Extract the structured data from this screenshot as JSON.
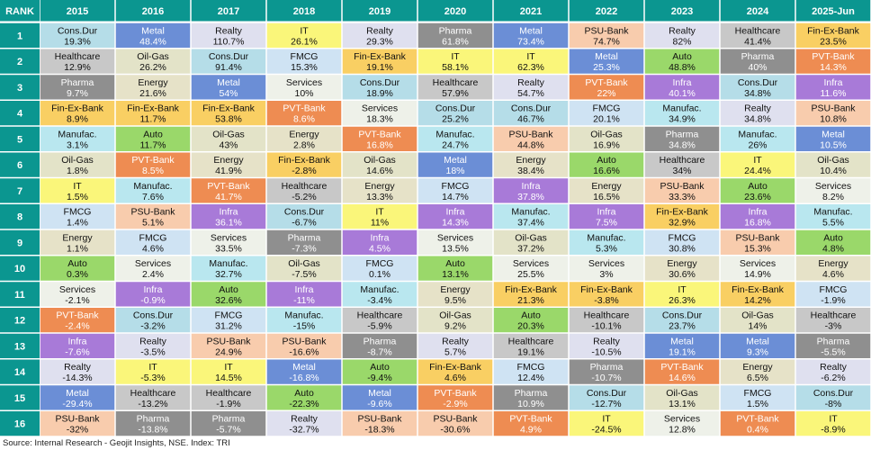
{
  "chart_data": {
    "type": "table",
    "header_label": "RANK",
    "years": [
      "2015",
      "2016",
      "2017",
      "2018",
      "2019",
      "2020",
      "2021",
      "2022",
      "2023",
      "2024",
      "2025-Jun"
    ],
    "ranks": [
      "1",
      "2",
      "3",
      "4",
      "5",
      "6",
      "7",
      "8",
      "9",
      "10",
      "11",
      "12",
      "13",
      "14",
      "15",
      "16"
    ],
    "sector_colors": {
      "Cons.Dur": "#b5dde8",
      "Metal": "#6b8ed6",
      "Realty": "#dfe0ef",
      "IT": "#faf67a",
      "Pharma": "#8f8f8f",
      "PSU-Bank": "#f8ccad",
      "Healthcare": "#c8c8c8",
      "Fin-Ex-Bank": "#f9cf63",
      "Oil-Gas": "#e3e3c8",
      "FMCG": "#cfe3f3",
      "Auto": "#9ad86a",
      "PVT-Bank": "#ee8c52",
      "Energy": "#e6e2c8",
      "Services": "#eef1e9",
      "Infra": "#a87ad8",
      "Manufac.": "#b9e7ef"
    },
    "white_text_sectors": [
      "Metal",
      "Pharma",
      "PVT-Bank",
      "Infra"
    ],
    "columns": [
      [
        [
          "Cons.Dur",
          "19.3%"
        ],
        [
          "Healthcare",
          "12.9%"
        ],
        [
          "Pharma",
          "9.7%"
        ],
        [
          "Fin-Ex-Bank",
          "8.9%"
        ],
        [
          "Manufac.",
          "3.1%"
        ],
        [
          "Oil-Gas",
          "1.8%"
        ],
        [
          "IT",
          "1.5%"
        ],
        [
          "FMCG",
          "1.4%"
        ],
        [
          "Energy",
          "1.1%"
        ],
        [
          "Auto",
          "0.3%"
        ],
        [
          "Services",
          "-2.1%"
        ],
        [
          "PVT-Bank",
          "-2.4%"
        ],
        [
          "Infra",
          "-7.6%"
        ],
        [
          "Realty",
          "-14.3%"
        ],
        [
          "Metal",
          "-29.4%"
        ],
        [
          "PSU-Bank",
          "-32%"
        ]
      ],
      [
        [
          "Metal",
          "48.4%"
        ],
        [
          "Oil-Gas",
          "26.2%"
        ],
        [
          "Energy",
          "21.6%"
        ],
        [
          "Fin-Ex-Bank",
          "11.7%"
        ],
        [
          "Auto",
          "11.7%"
        ],
        [
          "PVT-Bank",
          "8.5%"
        ],
        [
          "Manufac.",
          "7.6%"
        ],
        [
          "PSU-Bank",
          "5.1%"
        ],
        [
          "FMCG",
          "4.6%"
        ],
        [
          "Services",
          "2.4%"
        ],
        [
          "Infra",
          "-0.9%"
        ],
        [
          "Cons.Dur",
          "-3.2%"
        ],
        [
          "Realty",
          "-3.5%"
        ],
        [
          "IT",
          "-5.3%"
        ],
        [
          "Healthcare",
          "-13.2%"
        ],
        [
          "Pharma",
          "-13.8%"
        ]
      ],
      [
        [
          "Realty",
          "110.7%"
        ],
        [
          "Cons.Dur",
          "91.4%"
        ],
        [
          "Metal",
          "54%"
        ],
        [
          "Fin-Ex-Bank",
          "53.8%"
        ],
        [
          "Oil-Gas",
          "43%"
        ],
        [
          "Energy",
          "41.9%"
        ],
        [
          "PVT-Bank",
          "41.7%"
        ],
        [
          "Infra",
          "36.1%"
        ],
        [
          "Services",
          "33.5%"
        ],
        [
          "Manufac.",
          "32.7%"
        ],
        [
          "Auto",
          "32.6%"
        ],
        [
          "FMCG",
          "31.2%"
        ],
        [
          "PSU-Bank",
          "24.9%"
        ],
        [
          "IT",
          "14.5%"
        ],
        [
          "Healthcare",
          "-1.9%"
        ],
        [
          "Pharma",
          "-5.7%"
        ]
      ],
      [
        [
          "IT",
          "26.1%"
        ],
        [
          "FMCG",
          "15.3%"
        ],
        [
          "Services",
          "10%"
        ],
        [
          "PVT-Bank",
          "8.6%"
        ],
        [
          "Energy",
          "2.8%"
        ],
        [
          "Fin-Ex-Bank",
          "-2.8%"
        ],
        [
          "Healthcare",
          "-5.2%"
        ],
        [
          "Cons.Dur",
          "-6.7%"
        ],
        [
          "Pharma",
          "-7.3%"
        ],
        [
          "Oil-Gas",
          "-7.5%"
        ],
        [
          "Infra",
          "-11%"
        ],
        [
          "Manufac.",
          "-15%"
        ],
        [
          "PSU-Bank",
          "-16.6%"
        ],
        [
          "Metal",
          "-16.8%"
        ],
        [
          "Auto",
          "-22.3%"
        ],
        [
          "Realty",
          "-32.7%"
        ]
      ],
      [
        [
          "Realty",
          "29.3%"
        ],
        [
          "Fin-Ex-Bank",
          "19.1%"
        ],
        [
          "Cons.Dur",
          "18.9%"
        ],
        [
          "Services",
          "18.3%"
        ],
        [
          "PVT-Bank",
          "16.8%"
        ],
        [
          "Oil-Gas",
          "14.6%"
        ],
        [
          "Energy",
          "13.3%"
        ],
        [
          "IT",
          "11%"
        ],
        [
          "Infra",
          "4.5%"
        ],
        [
          "FMCG",
          "0.1%"
        ],
        [
          "Manufac.",
          "-3.4%"
        ],
        [
          "Healthcare",
          "-5.9%"
        ],
        [
          "Pharma",
          "-8.7%"
        ],
        [
          "Auto",
          "-9.4%"
        ],
        [
          "Metal",
          "-9.6%"
        ],
        [
          "PSU-Bank",
          "-18.3%"
        ]
      ],
      [
        [
          "Pharma",
          "61.8%"
        ],
        [
          "IT",
          "58.1%"
        ],
        [
          "Healthcare",
          "57.9%"
        ],
        [
          "Cons.Dur",
          "25.2%"
        ],
        [
          "Manufac.",
          "24.7%"
        ],
        [
          "Metal",
          "18%"
        ],
        [
          "FMCG",
          "14.7%"
        ],
        [
          "Infra",
          "14.3%"
        ],
        [
          "Services",
          "13.5%"
        ],
        [
          "Auto",
          "13.1%"
        ],
        [
          "Energy",
          "9.5%"
        ],
        [
          "Oil-Gas",
          "9.2%"
        ],
        [
          "Realty",
          "5.7%"
        ],
        [
          "Fin-Ex-Bank",
          "4.6%"
        ],
        [
          "PVT-Bank",
          "-2.9%"
        ],
        [
          "PSU-Bank",
          "-30.6%"
        ]
      ],
      [
        [
          "Metal",
          "73.4%"
        ],
        [
          "IT",
          "62.3%"
        ],
        [
          "Realty",
          "54.7%"
        ],
        [
          "Cons.Dur",
          "46.7%"
        ],
        [
          "PSU-Bank",
          "44.8%"
        ],
        [
          "Energy",
          "38.4%"
        ],
        [
          "Infra",
          "37.8%"
        ],
        [
          "Manufac.",
          "37.4%"
        ],
        [
          "Oil-Gas",
          "37.2%"
        ],
        [
          "Services",
          "25.5%"
        ],
        [
          "Fin-Ex-Bank",
          "21.3%"
        ],
        [
          "Auto",
          "20.3%"
        ],
        [
          "Healthcare",
          "19.1%"
        ],
        [
          "FMCG",
          "12.4%"
        ],
        [
          "Pharma",
          "10.9%"
        ],
        [
          "PVT-Bank",
          "4.9%"
        ]
      ],
      [
        [
          "PSU-Bank",
          "74.7%"
        ],
        [
          "Metal",
          "25.3%"
        ],
        [
          "PVT-Bank",
          "22%"
        ],
        [
          "FMCG",
          "20.1%"
        ],
        [
          "Oil-Gas",
          "16.9%"
        ],
        [
          "Auto",
          "16.6%"
        ],
        [
          "Energy",
          "16.5%"
        ],
        [
          "Infra",
          "7.5%"
        ],
        [
          "Manufac.",
          "5.3%"
        ],
        [
          "Services",
          "3%"
        ],
        [
          "Fin-Ex-Bank",
          "-3.8%"
        ],
        [
          "Healthcare",
          "-10.1%"
        ],
        [
          "Realty",
          "-10.5%"
        ],
        [
          "Pharma",
          "-10.7%"
        ],
        [
          "Cons.Dur",
          "-12.7%"
        ],
        [
          "IT",
          "-24.5%"
        ]
      ],
      [
        [
          "Realty",
          "82%"
        ],
        [
          "Auto",
          "48.8%"
        ],
        [
          "Infra",
          "40.1%"
        ],
        [
          "Manufac.",
          "34.9%"
        ],
        [
          "Pharma",
          "34.8%"
        ],
        [
          "Healthcare",
          "34%"
        ],
        [
          "PSU-Bank",
          "33.3%"
        ],
        [
          "Fin-Ex-Bank",
          "32.9%"
        ],
        [
          "FMCG",
          "30.8%"
        ],
        [
          "Energy",
          "30.6%"
        ],
        [
          "IT",
          "26.3%"
        ],
        [
          "Cons.Dur",
          "23.7%"
        ],
        [
          "Metal",
          "19.1%"
        ],
        [
          "PVT-Bank",
          "14.6%"
        ],
        [
          "Oil-Gas",
          "13.1%"
        ],
        [
          "Services",
          "12.8%"
        ]
      ],
      [
        [
          "Healthcare",
          "41.4%"
        ],
        [
          "Pharma",
          "40%"
        ],
        [
          "Cons.Dur",
          "34.8%"
        ],
        [
          "Realty",
          "34.8%"
        ],
        [
          "Manufac.",
          "26%"
        ],
        [
          "IT",
          "24.4%"
        ],
        [
          "Auto",
          "23.6%"
        ],
        [
          "Infra",
          "16.8%"
        ],
        [
          "PSU-Bank",
          "15.3%"
        ],
        [
          "Services",
          "14.9%"
        ],
        [
          "Fin-Ex-Bank",
          "14.2%"
        ],
        [
          "Oil-Gas",
          "14%"
        ],
        [
          "Metal",
          "9.3%"
        ],
        [
          "Energy",
          "6.5%"
        ],
        [
          "FMCG",
          "1.5%"
        ],
        [
          "PVT-Bank",
          "0.4%"
        ]
      ],
      [
        [
          "Fin-Ex-Bank",
          "23.5%"
        ],
        [
          "PVT-Bank",
          "14.3%"
        ],
        [
          "Infra",
          "11.6%"
        ],
        [
          "PSU-Bank",
          "10.8%"
        ],
        [
          "Metal",
          "10.5%"
        ],
        [
          "Oil-Gas",
          "10.4%"
        ],
        [
          "Services",
          "8.2%"
        ],
        [
          "Manufac.",
          "5.5%"
        ],
        [
          "Auto",
          "4.8%"
        ],
        [
          "Energy",
          "4.6%"
        ],
        [
          "FMCG",
          "-1.9%"
        ],
        [
          "Healthcare",
          "-3%"
        ],
        [
          "Pharma",
          "-5.5%"
        ],
        [
          "Realty",
          "-6.2%"
        ],
        [
          "Cons.Dur",
          "-8%"
        ],
        [
          "IT",
          "-8.9%"
        ]
      ]
    ]
  },
  "source_note": "Source: Internal Research - Geojit Insights, NSE. Index: TRI"
}
